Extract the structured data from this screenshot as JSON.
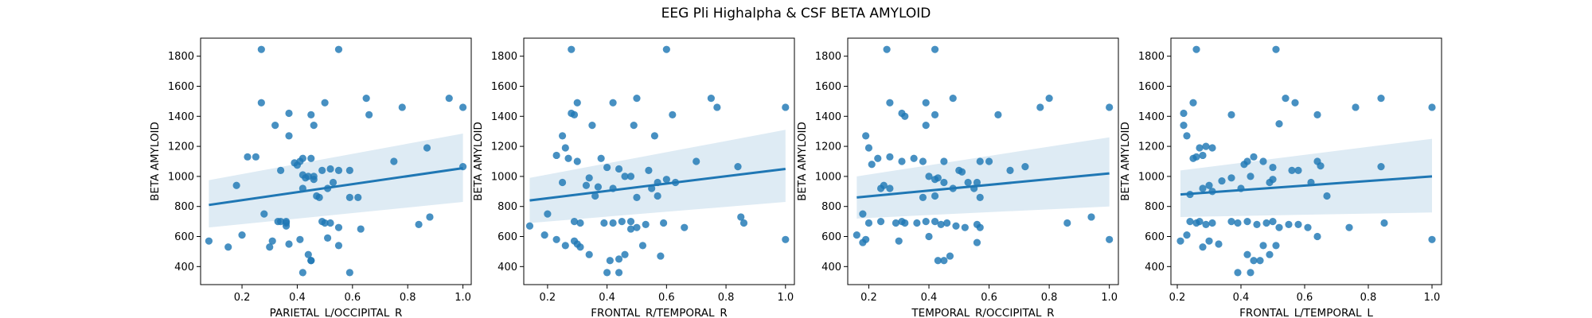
{
  "figure": {
    "suptitle": "EEG Pli Highalpha & CSF BETA AMYLOID"
  },
  "colors": {
    "point": "#1f77b4",
    "line": "#1f77b4",
    "band": "#1f77b4",
    "axis": "#000000"
  },
  "chart_data": [
    {
      "type": "scatter",
      "xlabel": "PARIETAL_L/OCCIPITAL_R",
      "ylabel": "BETA AMYLOID",
      "xlim": [
        0.05,
        1.03
      ],
      "ylim": [
        280,
        1920
      ],
      "xticks": [
        0.2,
        0.4,
        0.6,
        0.8,
        1.0
      ],
      "xtick_labels": [
        "0.2",
        "0.4",
        "0.6",
        "0.8",
        "1.0"
      ],
      "yticks": [
        400,
        600,
        800,
        1000,
        1200,
        1400,
        1600,
        1800
      ],
      "ytick_labels": [
        "400",
        "600",
        "800",
        "1000",
        "1200",
        "1400",
        "1600",
        "1800"
      ],
      "regression": {
        "x": [
          0.08,
          1.0
        ],
        "y": [
          810,
          1055
        ],
        "band_lower": [
          660,
          830
        ],
        "band_upper": [
          975,
          1285
        ]
      },
      "x": [
        0.27,
        0.55,
        0.95,
        1.0,
        0.65,
        0.78,
        0.27,
        0.5,
        0.66,
        0.45,
        0.37,
        0.46,
        0.32,
        0.37,
        0.42,
        0.45,
        0.87,
        0.41,
        0.39,
        0.22,
        0.25,
        0.46,
        0.52,
        0.55,
        0.49,
        0.59,
        0.75,
        1.0,
        0.4,
        0.42,
        0.42,
        0.34,
        0.53,
        0.43,
        0.44,
        0.46,
        0.51,
        0.18,
        0.08,
        0.34,
        0.33,
        0.36,
        0.36,
        0.36,
        0.28,
        0.49,
        0.5,
        0.52,
        0.55,
        0.59,
        0.62,
        0.63,
        0.84,
        0.88,
        0.2,
        0.15,
        0.31,
        0.41,
        0.3,
        0.37,
        0.44,
        0.45,
        0.51,
        0.55,
        0.45,
        0.59,
        0.42,
        0.47,
        0.48
      ],
      "y": [
        1845,
        1845,
        1520,
        1460,
        1520,
        1460,
        1490,
        1490,
        1410,
        1410,
        1420,
        1340,
        1340,
        1270,
        1120,
        1120,
        1190,
        1100,
        1090,
        1130,
        1130,
        1000,
        1050,
        1040,
        1040,
        1040,
        1100,
        1065,
        1075,
        1010,
        920,
        1040,
        960,
        990,
        1000,
        980,
        920,
        940,
        570,
        700,
        700,
        690,
        670,
        700,
        750,
        700,
        690,
        690,
        660,
        860,
        860,
        650,
        680,
        730,
        610,
        530,
        570,
        580,
        530,
        550,
        480,
        440,
        590,
        540,
        440,
        360,
        360,
        870,
        860
      ]
    },
    {
      "type": "scatter",
      "xlabel": "FRONTAL_R/TEMPORAL_R",
      "ylabel": "BETA AMYLOID",
      "xlim": [
        0.12,
        1.03
      ],
      "ylim": [
        280,
        1920
      ],
      "xticks": [
        0.2,
        0.4,
        0.6,
        0.8,
        1.0
      ],
      "xtick_labels": [
        "0.2",
        "0.4",
        "0.6",
        "0.8",
        "1.0"
      ],
      "yticks": [
        400,
        600,
        800,
        1000,
        1200,
        1400,
        1600,
        1800
      ],
      "ytick_labels": [
        "400",
        "600",
        "800",
        "1000",
        "1200",
        "1400",
        "1600",
        "1800"
      ],
      "regression": {
        "x": [
          0.14,
          1.0
        ],
        "y": [
          840,
          1050
        ],
        "band_lower": [
          690,
          830
        ],
        "band_upper": [
          990,
          1310
        ]
      },
      "x": [
        0.28,
        0.6,
        0.75,
        1.0,
        0.77,
        0.5,
        0.3,
        0.42,
        0.62,
        0.28,
        0.29,
        0.49,
        0.35,
        0.25,
        0.56,
        0.23,
        0.27,
        0.26,
        0.3,
        0.38,
        0.4,
        0.44,
        0.48,
        0.7,
        0.54,
        0.25,
        0.37,
        0.55,
        0.57,
        0.6,
        0.63,
        0.84,
        0.33,
        0.34,
        0.36,
        0.42,
        0.46,
        0.5,
        0.2,
        0.14,
        0.39,
        0.29,
        0.31,
        0.42,
        0.45,
        0.48,
        0.53,
        0.59,
        0.66,
        0.85,
        0.86,
        0.19,
        0.23,
        0.26,
        0.29,
        0.3,
        0.31,
        0.34,
        0.48,
        0.41,
        0.46,
        0.52,
        0.58,
        1.0,
        0.4,
        0.44,
        0.44,
        0.5,
        0.57
      ],
      "y": [
        1845,
        1845,
        1520,
        1460,
        1460,
        1520,
        1490,
        1490,
        1410,
        1420,
        1410,
        1340,
        1340,
        1270,
        1270,
        1140,
        1120,
        1190,
        1100,
        1120,
        1060,
        1050,
        1000,
        1100,
        1040,
        960,
        930,
        920,
        960,
        980,
        960,
        1065,
        940,
        990,
        870,
        920,
        1000,
        860,
        750,
        670,
        690,
        700,
        690,
        690,
        700,
        700,
        680,
        690,
        660,
        730,
        690,
        610,
        580,
        540,
        570,
        550,
        530,
        480,
        650,
        440,
        480,
        540,
        470,
        580,
        360,
        360,
        450,
        660,
        870
      ]
    },
    {
      "type": "scatter",
      "xlabel": "TEMPORAL_R/OCCIPITAL_R",
      "ylabel": "BETA AMYLOID",
      "xlim": [
        0.13,
        1.03
      ],
      "ylim": [
        280,
        1920
      ],
      "xticks": [
        0.2,
        0.4,
        0.6,
        0.8,
        1.0
      ],
      "xtick_labels": [
        "0.2",
        "0.4",
        "0.6",
        "0.8",
        "1.0"
      ],
      "yticks": [
        400,
        600,
        800,
        1000,
        1200,
        1400,
        1600,
        1800
      ],
      "ytick_labels": [
        "400",
        "600",
        "800",
        "1000",
        "1200",
        "1400",
        "1600",
        "1800"
      ],
      "regression": {
        "x": [
          0.16,
          1.0
        ],
        "y": [
          860,
          1020
        ],
        "band_lower": [
          720,
          800
        ],
        "band_upper": [
          1000,
          1260
        ]
      },
      "x": [
        0.26,
        0.42,
        0.8,
        1.0,
        0.48,
        0.77,
        0.27,
        0.39,
        0.63,
        0.42,
        0.31,
        0.32,
        0.39,
        0.19,
        0.2,
        0.23,
        0.27,
        0.31,
        0.35,
        0.38,
        0.45,
        0.21,
        0.5,
        0.51,
        0.57,
        0.6,
        0.67,
        0.72,
        0.56,
        0.4,
        0.45,
        0.48,
        0.53,
        0.55,
        0.43,
        0.42,
        0.24,
        0.25,
        0.27,
        0.57,
        0.42,
        0.38,
        0.18,
        0.2,
        0.16,
        0.24,
        0.29,
        0.31,
        0.32,
        0.36,
        0.39,
        0.42,
        0.44,
        0.46,
        0.49,
        0.52,
        0.56,
        0.57,
        0.86,
        0.94,
        0.19,
        0.18,
        0.3,
        0.4,
        0.43,
        0.45,
        0.47,
        0.56,
        1.0
      ],
      "y": [
        1845,
        1845,
        1520,
        1460,
        1520,
        1460,
        1490,
        1490,
        1410,
        1410,
        1420,
        1400,
        1340,
        1270,
        1190,
        1120,
        1130,
        1100,
        1120,
        1100,
        1100,
        1080,
        1040,
        1030,
        1100,
        1100,
        1040,
        1065,
        960,
        1000,
        960,
        920,
        960,
        920,
        990,
        980,
        920,
        940,
        920,
        860,
        870,
        860,
        750,
        690,
        610,
        700,
        690,
        700,
        690,
        690,
        700,
        700,
        680,
        690,
        670,
        660,
        680,
        660,
        690,
        730,
        580,
        560,
        570,
        600,
        440,
        440,
        470,
        560,
        580
      ]
    },
    {
      "type": "scatter",
      "xlabel": "FRONTAL_L/TEMPORAL_L",
      "ylabel": "BETA AMYLOID",
      "xlim": [
        0.18,
        1.03
      ],
      "ylim": [
        280,
        1920
      ],
      "xticks": [
        0.2,
        0.4,
        0.6,
        0.8,
        1.0
      ],
      "xtick_labels": [
        "0.2",
        "0.4",
        "0.6",
        "0.8",
        "1.0"
      ],
      "yticks": [
        400,
        600,
        800,
        1000,
        1200,
        1400,
        1600,
        1800
      ],
      "ytick_labels": [
        "400",
        "600",
        "800",
        "1000",
        "1200",
        "1400",
        "1600",
        "1800"
      ],
      "regression": {
        "x": [
          0.21,
          1.0
        ],
        "y": [
          880,
          1000
        ],
        "band_lower": [
          730,
          760
        ],
        "band_upper": [
          1040,
          1250
        ]
      },
      "x": [
        0.26,
        0.51,
        0.84,
        1.0,
        0.54,
        0.76,
        0.25,
        0.57,
        0.64,
        0.37,
        0.22,
        0.22,
        0.23,
        0.27,
        0.29,
        0.31,
        0.25,
        0.26,
        0.28,
        0.41,
        0.42,
        0.44,
        0.47,
        0.5,
        0.52,
        0.56,
        0.58,
        0.64,
        0.65,
        0.84,
        0.37,
        0.4,
        0.43,
        0.49,
        0.5,
        0.62,
        0.28,
        0.3,
        0.31,
        0.34,
        0.24,
        0.67,
        0.24,
        0.26,
        0.27,
        0.29,
        0.31,
        0.37,
        0.42,
        0.45,
        0.48,
        0.5,
        0.52,
        0.55,
        0.58,
        0.21,
        0.23,
        0.28,
        0.3,
        0.33,
        0.39,
        0.42,
        0.44,
        0.47,
        0.49,
        0.51,
        0.61,
        0.64,
        0.74,
        0.85,
        1.0,
        0.39,
        0.43,
        0.46
      ],
      "y": [
        1845,
        1845,
        1520,
        1460,
        1520,
        1460,
        1490,
        1490,
        1410,
        1410,
        1420,
        1340,
        1270,
        1190,
        1200,
        1190,
        1120,
        1130,
        1140,
        1080,
        1100,
        1130,
        1100,
        1060,
        1350,
        1040,
        1040,
        1100,
        1070,
        1065,
        990,
        920,
        1000,
        960,
        980,
        960,
        920,
        940,
        900,
        970,
        880,
        870,
        700,
        690,
        700,
        680,
        690,
        700,
        700,
        680,
        690,
        700,
        660,
        680,
        680,
        570,
        610,
        530,
        570,
        550,
        690,
        480,
        440,
        540,
        480,
        540,
        660,
        600,
        660,
        690,
        580,
        360,
        360,
        440
      ]
    }
  ]
}
